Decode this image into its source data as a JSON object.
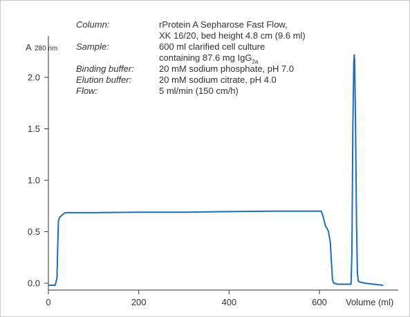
{
  "chart_data": {
    "type": "line",
    "ylabel_main": "A",
    "ylabel_sub": "280 nm",
    "xlabel": "Volume (ml)",
    "xlim": [
      0,
      740
    ],
    "ylim": [
      -0.05,
      2.35
    ],
    "xticks": [
      {
        "v": 0,
        "label": "0"
      },
      {
        "v": 200,
        "label": "200"
      },
      {
        "v": 400,
        "label": "400"
      },
      {
        "v": 600,
        "label": "600"
      }
    ],
    "yticks": [
      {
        "v": 0,
        "label": "0.0"
      },
      {
        "v": 0.5,
        "label": "0.5"
      },
      {
        "v": 1.0,
        "label": "1.0"
      },
      {
        "v": 1.5,
        "label": "1.5"
      },
      {
        "v": 2.0,
        "label": "2.0"
      }
    ],
    "grid": false,
    "series": [
      {
        "color": "#1d6fb5",
        "x": [
          0,
          15,
          19,
          22,
          25,
          30,
          35,
          40,
          50,
          100,
          200,
          300,
          400,
          500,
          560,
          590,
          604,
          608,
          612,
          614,
          616,
          620,
          624,
          626,
          629,
          632,
          640,
          660,
          670,
          672,
          674,
          676,
          677,
          678,
          680,
          682,
          684,
          686,
          690,
          700,
          720,
          740
        ],
        "y": [
          -0.02,
          -0.02,
          0.05,
          0.6,
          0.64,
          0.66,
          0.68,
          0.685,
          0.685,
          0.685,
          0.69,
          0.69,
          0.695,
          0.7,
          0.7,
          0.7,
          0.7,
          0.65,
          0.58,
          0.55,
          0.54,
          0.5,
          0.4,
          0.25,
          0.03,
          0.0,
          -0.01,
          -0.01,
          -0.01,
          0.3,
          1.5,
          2.15,
          2.22,
          2.15,
          1.5,
          0.6,
          0.1,
          0.02,
          0.01,
          0.0,
          -0.01,
          -0.02
        ]
      }
    ],
    "annotation": [
      {
        "key": "Column:",
        "lines": [
          "rProtein A Sepharose Fast Flow,",
          "XK 16/20, bed height 4.8 cm (9.6 ml)"
        ]
      },
      {
        "key": "Sample:",
        "lines": [
          "600 ml clarified cell culture",
          "containing 87.6 mg IgG"
        ],
        "subscript": "2a"
      },
      {
        "key": "Binding buffer:",
        "lines": [
          "20 mM sodium phosphate, pH 7.0"
        ]
      },
      {
        "key": "Elution buffer:",
        "lines": [
          "20 mM sodium citrate, pH 4.0"
        ]
      },
      {
        "key": "Flow:",
        "lines": [
          "5 ml/min (150 cm/h)"
        ]
      }
    ]
  }
}
